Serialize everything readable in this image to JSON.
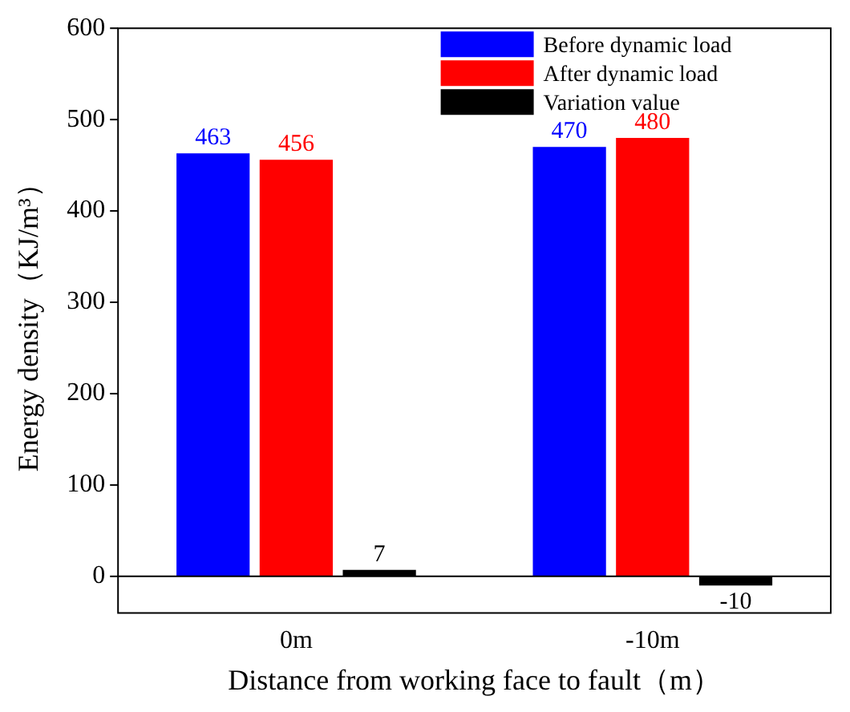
{
  "chart_data": {
    "type": "bar",
    "xlabel": "Distance from working face to fault（m）",
    "ylabel": "Energy density（KJ/m³）",
    "categories": [
      "0m",
      "-10m"
    ],
    "series": [
      {
        "name": "Before dynamic load",
        "color": "#0000ff",
        "values": [
          463,
          470
        ]
      },
      {
        "name": "After dynamic load",
        "color": "#ff0000",
        "values": [
          456,
          480
        ]
      },
      {
        "name": "Variation value",
        "color": "#000000",
        "values": [
          7,
          -10
        ]
      }
    ],
    "ylim": [
      -40,
      600
    ],
    "yticks": [
      0,
      100,
      200,
      300,
      400,
      500,
      600
    ],
    "data_labels": true,
    "legend": "top"
  }
}
